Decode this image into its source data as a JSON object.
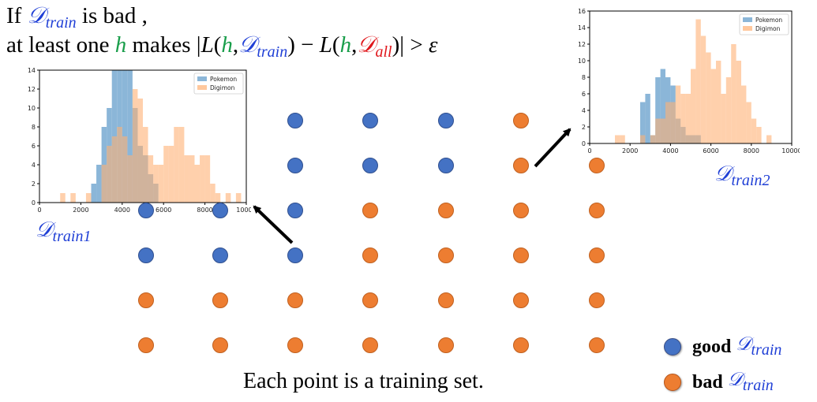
{
  "title": {
    "line1": {
      "pre": "If ",
      "d": "𝒟",
      "dsub": "train",
      "post": " is bad ,"
    },
    "line2": {
      "pre": "at least one ",
      "h": "h",
      "mid": " makes ",
      "bar": "|",
      "L1": "L",
      "open1": "(",
      "h2": "h",
      "comma1": ",",
      "d1": "𝒟",
      "d1sub": "train",
      "close1": ")",
      "minus": " − ",
      "L2": "L",
      "open2": "(",
      "h3": "h",
      "comma2": ",",
      "d2": "𝒟",
      "d2sub": "all",
      "close2": ")",
      "tail": "| > ",
      "eps": "ε"
    }
  },
  "caption": "Each point is a training set.",
  "legend": {
    "good": {
      "word": "good",
      "d": "𝒟",
      "dsub": "train",
      "color": "#4472C4"
    },
    "bad": {
      "word": "bad",
      "d": "𝒟",
      "dsub": "train",
      "color": "#ED7D31"
    }
  },
  "label_train1": {
    "d": "𝒟",
    "sub": "train1"
  },
  "label_train2": {
    "d": "𝒟",
    "sub": "train2"
  },
  "grid": {
    "rows": [
      [
        "",
        "",
        "good",
        "good",
        "good",
        "bad",
        ""
      ],
      [
        "",
        "",
        "good",
        "good",
        "good",
        "bad",
        "bad"
      ],
      [
        "good",
        "good",
        "good",
        "bad",
        "bad",
        "bad",
        "bad"
      ],
      [
        "good",
        "good",
        "good",
        "bad",
        "bad",
        "bad",
        "bad"
      ],
      [
        "bad",
        "bad",
        "bad",
        "bad",
        "bad",
        "bad",
        "bad"
      ],
      [
        "bad",
        "bad",
        "bad",
        "bad",
        "bad",
        "bad",
        "bad"
      ]
    ]
  },
  "chart_data": [
    {
      "type": "bar",
      "xlim": [
        0,
        10000
      ],
      "ylim": [
        0,
        14
      ],
      "xticks": [
        "0",
        "2000",
        "4000",
        "6000",
        "8000",
        "10000"
      ],
      "yticks": [
        "0",
        "2",
        "4",
        "6",
        "8",
        "10",
        "12",
        "14"
      ],
      "bin_width": 250,
      "legend_position": "top-right",
      "series": [
        {
          "name": "Pokemon",
          "color": "#7EAED4",
          "bins": [
            [
              2500,
              2
            ],
            [
              2750,
              4
            ],
            [
              3000,
              8
            ],
            [
              3250,
              10
            ],
            [
              3500,
              14
            ],
            [
              3750,
              14
            ],
            [
              4000,
              14
            ],
            [
              4250,
              14
            ],
            [
              4500,
              10
            ],
            [
              4750,
              6
            ],
            [
              5000,
              5
            ],
            [
              5250,
              3
            ],
            [
              5500,
              2
            ]
          ]
        },
        {
          "name": "Digimon",
          "color": "#FFB074",
          "bins": [
            [
              1000,
              1
            ],
            [
              1500,
              1
            ],
            [
              2250,
              1
            ],
            [
              3000,
              4
            ],
            [
              3250,
              6
            ],
            [
              3500,
              7
            ],
            [
              3750,
              8
            ],
            [
              4000,
              7
            ],
            [
              4250,
              5
            ],
            [
              4500,
              12
            ],
            [
              4750,
              11
            ],
            [
              5000,
              8
            ],
            [
              5250,
              5
            ],
            [
              5500,
              4
            ],
            [
              5750,
              4
            ],
            [
              6000,
              6
            ],
            [
              6250,
              6
            ],
            [
              6500,
              8
            ],
            [
              6750,
              8
            ],
            [
              7000,
              5
            ],
            [
              7250,
              5
            ],
            [
              7500,
              4
            ],
            [
              7750,
              5
            ],
            [
              8000,
              5
            ],
            [
              8250,
              2
            ],
            [
              8500,
              1
            ],
            [
              9000,
              1
            ],
            [
              9500,
              1
            ]
          ]
        }
      ]
    },
    {
      "type": "bar",
      "xlim": [
        0,
        10000
      ],
      "ylim": [
        0,
        16
      ],
      "xticks": [
        "0",
        "2000",
        "4000",
        "6000",
        "8000",
        "10000"
      ],
      "yticks": [
        "0",
        "2",
        "4",
        "6",
        "8",
        "10",
        "12",
        "14",
        "16"
      ],
      "bin_width": 250,
      "legend_position": "top-right",
      "series": [
        {
          "name": "Pokemon",
          "color": "#7EAED4",
          "bins": [
            [
              2500,
              5
            ],
            [
              2750,
              6
            ],
            [
              3000,
              1
            ],
            [
              3250,
              8
            ],
            [
              3500,
              9
            ],
            [
              3750,
              8
            ],
            [
              4000,
              7
            ],
            [
              4250,
              3
            ],
            [
              4500,
              2
            ],
            [
              4750,
              1
            ],
            [
              5000,
              1
            ],
            [
              5250,
              1
            ]
          ]
        },
        {
          "name": "Digimon",
          "color": "#FFB074",
          "bins": [
            [
              1250,
              1
            ],
            [
              1500,
              1
            ],
            [
              2500,
              1
            ],
            [
              3000,
              1
            ],
            [
              3250,
              3
            ],
            [
              3500,
              3
            ],
            [
              3750,
              5
            ],
            [
              4000,
              5
            ],
            [
              4250,
              7
            ],
            [
              4500,
              6
            ],
            [
              4750,
              6
            ],
            [
              5000,
              9
            ],
            [
              5250,
              15
            ],
            [
              5500,
              13
            ],
            [
              5750,
              11
            ],
            [
              6000,
              9
            ],
            [
              6250,
              10
            ],
            [
              6500,
              6
            ],
            [
              6750,
              8
            ],
            [
              7000,
              12
            ],
            [
              7250,
              10
            ],
            [
              7500,
              7
            ],
            [
              7750,
              5
            ],
            [
              8000,
              3
            ],
            [
              8250,
              2
            ],
            [
              8750,
              1
            ]
          ]
        }
      ]
    }
  ]
}
